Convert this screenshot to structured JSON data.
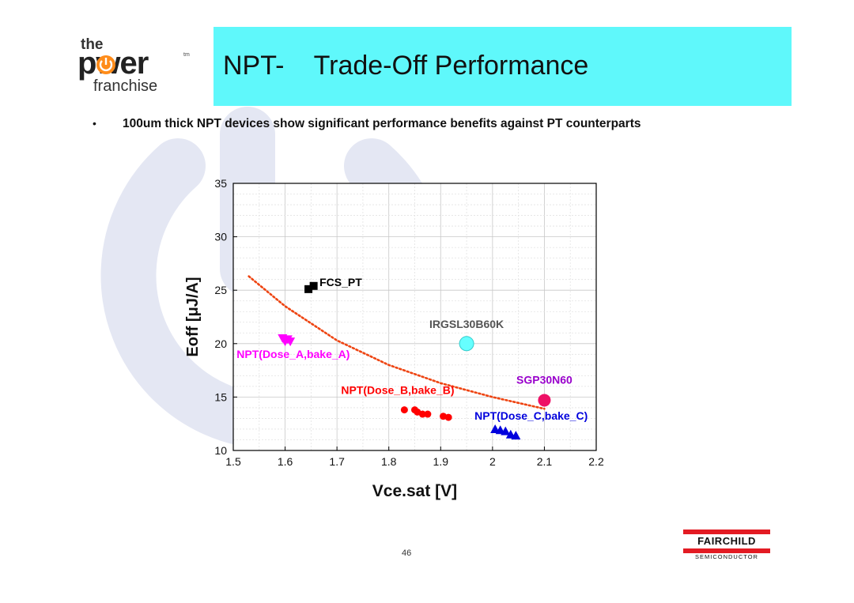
{
  "logo": {
    "the": "the",
    "power": "pwer",
    "tm": "tm",
    "franchise": "franchise"
  },
  "slide": {
    "title": "NPT-    Trade-Off Performance",
    "bullet_mark": "•",
    "bullet": "100um thick NPT devices show significant performance benefits against PT counterparts",
    "page_number": "46"
  },
  "footer_logo": {
    "name": "FAIRCHILD",
    "sub": "SEMICONDUCTOR"
  },
  "colors": {
    "title_bg": "#5ff8fb",
    "fairchild_red": "#e31b23",
    "watermark": "#e4e7f3"
  },
  "chart_data": {
    "type": "scatter",
    "xlabel": "Vce.sat [V]",
    "ylabel": "Eoff [μJ/A]",
    "xlim": [
      1.5,
      2.2
    ],
    "ylim": [
      10,
      35
    ],
    "xticks": [
      "1.5",
      "1.6",
      "1.7",
      "1.8",
      "1.9",
      "2",
      "2.1",
      "2.2"
    ],
    "yticks": [
      "10",
      "15",
      "20",
      "25",
      "30",
      "35"
    ],
    "grid": true,
    "series": [
      {
        "name": "FCS_PT",
        "marker": "square",
        "color": "#000000",
        "points": [
          [
            1.645,
            25.1
          ],
          [
            1.655,
            25.4
          ]
        ]
      },
      {
        "name": "IRGSL30B60K",
        "marker": "circle-large",
        "color": "#66ffff",
        "label_color": "#555555",
        "points": [
          [
            1.95,
            20.0
          ]
        ]
      },
      {
        "name": "NPT(Dose_A,bake_A)",
        "marker": "triangle-down",
        "color": "#ff00ff",
        "points": [
          [
            1.595,
            20.5
          ],
          [
            1.605,
            20.4
          ],
          [
            1.6,
            20.2
          ],
          [
            1.61,
            20.2
          ]
        ]
      },
      {
        "name": "NPT(Dose_B,bake_B)",
        "marker": "circle",
        "color": "#ff0000",
        "points": [
          [
            1.83,
            13.8
          ],
          [
            1.85,
            13.8
          ],
          [
            1.855,
            13.6
          ],
          [
            1.865,
            13.4
          ],
          [
            1.875,
            13.4
          ],
          [
            1.905,
            13.2
          ],
          [
            1.915,
            13.1
          ]
        ]
      },
      {
        "name": "SGP30N60",
        "marker": "circle-medium",
        "color": "#ee1166",
        "label_color": "#9900cc",
        "points": [
          [
            2.1,
            14.7
          ]
        ]
      },
      {
        "name": "NPT(Dose_C,bake_C)",
        "marker": "triangle-up",
        "color": "#0000dd",
        "points": [
          [
            2.005,
            12.0
          ],
          [
            2.015,
            11.9
          ],
          [
            2.025,
            11.8
          ],
          [
            2.035,
            11.5
          ],
          [
            2.045,
            11.4
          ]
        ]
      }
    ],
    "trend_line": {
      "style": "dotted",
      "color": "#ee4411",
      "points": [
        [
          1.53,
          26.3
        ],
        [
          1.6,
          23.5
        ],
        [
          1.7,
          20.3
        ],
        [
          1.8,
          18.0
        ],
        [
          1.9,
          16.3
        ],
        [
          2.0,
          15.0
        ],
        [
          2.1,
          13.9
        ]
      ]
    }
  }
}
